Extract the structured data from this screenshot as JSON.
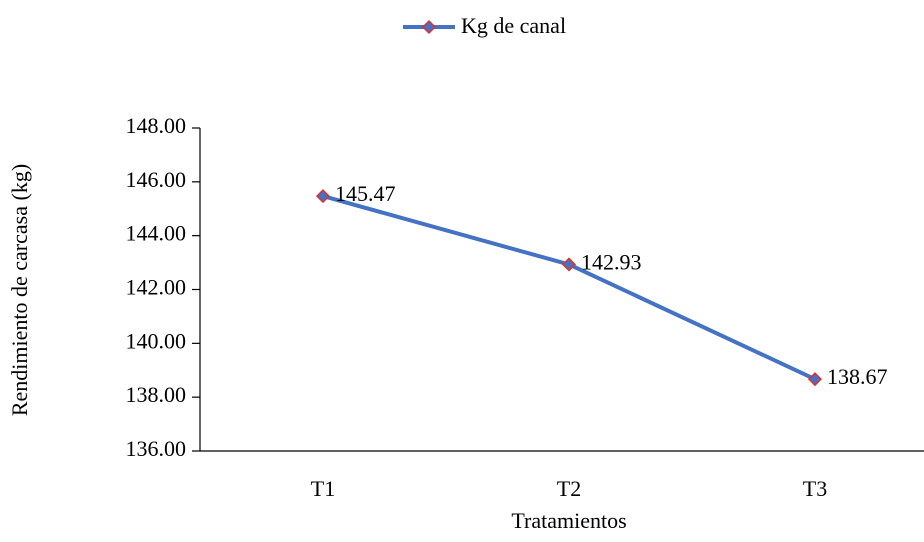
{
  "chart_data": {
    "type": "line",
    "legend": "Kg de canal",
    "x_label": "Tratamientos",
    "y_label": "Rendimiento de carcasa (kg)",
    "categories": [
      "T1",
      "T2",
      "T3"
    ],
    "series": [
      {
        "name": "Kg de canal",
        "color": "#4472c4",
        "marker_edge": "#e0302a",
        "values": [
          145.47,
          142.93,
          138.67
        ]
      }
    ],
    "ylim": [
      136,
      148
    ],
    "yticks": [
      {
        "value": 136,
        "label": "136.00"
      },
      {
        "value": 138,
        "label": "138.00"
      },
      {
        "value": 140,
        "label": "140.00"
      },
      {
        "value": 142,
        "label": "142.00"
      },
      {
        "value": 144,
        "label": "144.00"
      },
      {
        "value": 146,
        "label": "146.00"
      },
      {
        "value": 148,
        "label": "148.00"
      }
    ],
    "grid": false,
    "legend_position": "top"
  }
}
